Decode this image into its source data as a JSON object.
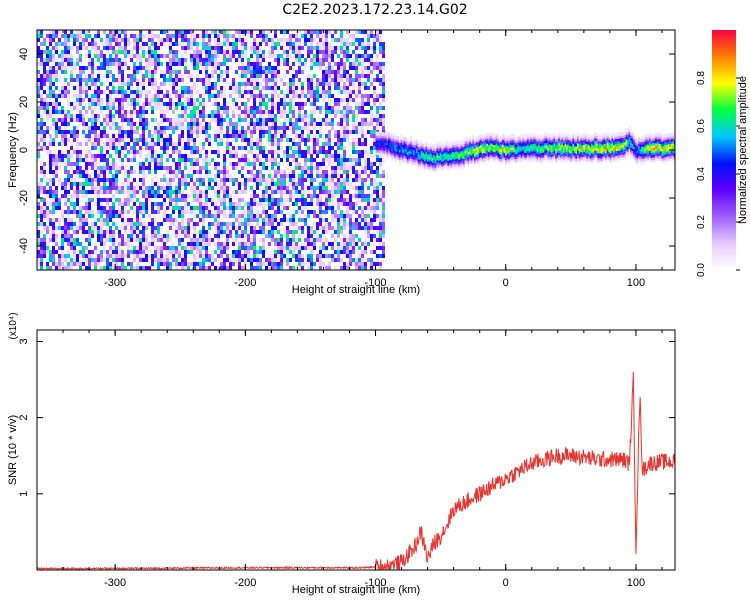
{
  "figure": {
    "title": "C2E2.2023.172.23.14.G02"
  },
  "colors": {
    "snr_line": "#e8332f",
    "axis": "#000000"
  },
  "chart_data": [
    {
      "type": "heatmap",
      "name": "spectrogram",
      "xlabel": "Height of straight line (km)",
      "ylabel": "Frequency (Hz)",
      "xlim": [
        -360,
        130
      ],
      "ylim": [
        -50,
        50
      ],
      "xticks": [
        -300,
        -200,
        -100,
        0,
        100
      ],
      "yticks": [
        -40,
        -20,
        0,
        20,
        40
      ],
      "colorbar": {
        "label": "Normalized spectral amplitude",
        "range": [
          0,
          1
        ],
        "ticks": [
          0.0,
          0.2,
          0.4,
          0.6,
          0.8
        ],
        "colormap": [
          "#ffffff",
          "#e6c8ff",
          "#a060ff",
          "#6000ff",
          "#0010ff",
          "#00c8ff",
          "#00ff40",
          "#ffff00",
          "#ff8000",
          "#ff0040"
        ]
      },
      "noise_region_x": [
        -360,
        -95
      ],
      "signal_trace": {
        "x": [
          -100,
          -90,
          -80,
          -70,
          -60,
          -50,
          -40,
          -30,
          -20,
          -10,
          0,
          10,
          20,
          40,
          60,
          80,
          90,
          95,
          100,
          110,
          120,
          130
        ],
        "freq": [
          3,
          2,
          0,
          -1,
          -3,
          -3,
          -2,
          -1,
          1,
          1,
          0,
          1,
          1,
          1,
          1,
          1,
          2,
          4,
          0,
          1,
          1,
          1
        ],
        "amplitude": [
          0.45,
          0.5,
          0.6,
          0.55,
          0.7,
          0.65,
          0.7,
          0.75,
          0.8,
          0.75,
          0.85,
          0.6,
          0.7,
          0.75,
          0.8,
          0.85,
          0.8,
          0.6,
          0.5,
          0.85,
          0.85,
          0.85
        ]
      }
    },
    {
      "type": "line",
      "name": "snr",
      "xlabel": "Height of straight line (km)",
      "ylabel": "SNR (10 * v/v)",
      "y_multiplier": "(x10⁴)",
      "xlim": [
        -360,
        130
      ],
      "ylim": [
        0,
        3.15
      ],
      "xticks": [
        -300,
        -200,
        -100,
        0,
        100
      ],
      "yticks": [
        1,
        2,
        3
      ],
      "series": [
        {
          "x": [
            -360,
            -300,
            -200,
            -150,
            -110,
            -100,
            -90,
            -80,
            -75,
            -70,
            -65,
            -60,
            -55,
            -50,
            -45,
            -40,
            -30,
            -20,
            -10,
            0,
            10,
            20,
            30,
            40,
            50,
            60,
            70,
            80,
            90,
            95,
            98,
            100,
            103,
            105,
            110,
            120,
            130
          ],
          "y": [
            0.02,
            0.02,
            0.03,
            0.03,
            0.03,
            0.04,
            0.05,
            0.1,
            0.2,
            0.3,
            0.5,
            0.15,
            0.35,
            0.45,
            0.6,
            0.8,
            0.9,
            1.0,
            1.1,
            1.2,
            1.3,
            1.4,
            1.45,
            1.5,
            1.5,
            1.48,
            1.45,
            1.45,
            1.45,
            1.4,
            2.5,
            0.3,
            2.3,
            1.3,
            1.4,
            1.42,
            1.42
          ]
        }
      ]
    }
  ]
}
